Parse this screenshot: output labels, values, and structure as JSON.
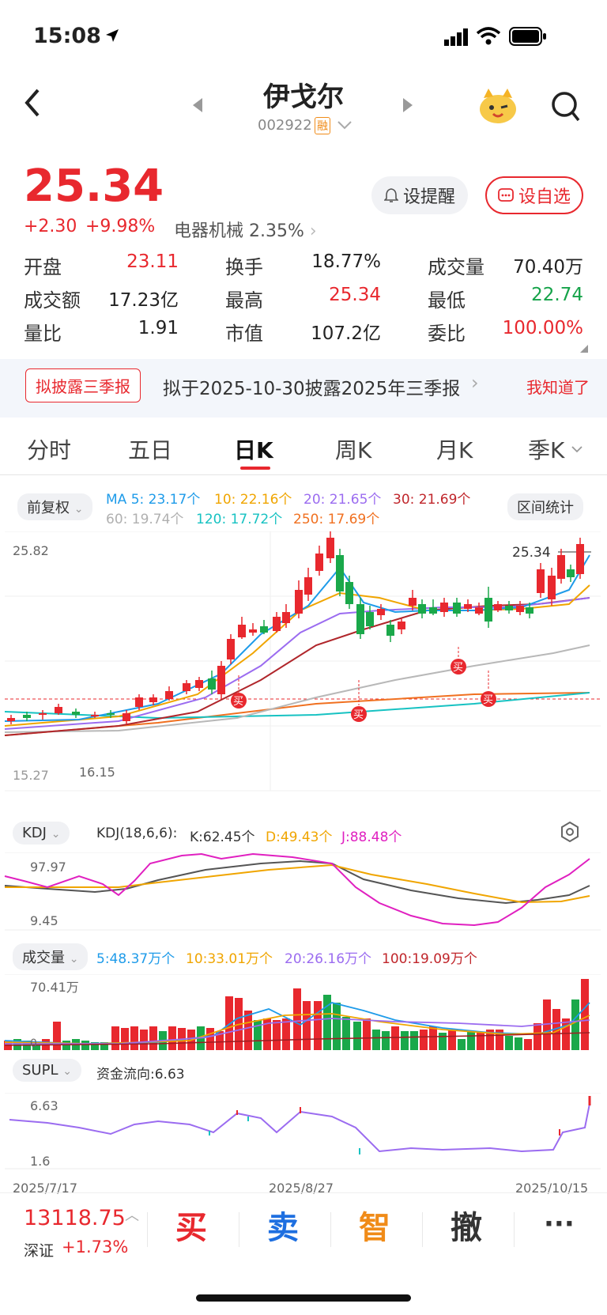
{
  "status_bar": {
    "time": "15:08"
  },
  "header": {
    "title": "伊戈尔",
    "code": "002922",
    "margin_badge": "融"
  },
  "quote": {
    "price": "25.34",
    "change": "+2.30",
    "change_pct": "+9.98%",
    "sector": "电器机械 2.35%",
    "alert_btn": "设提醒",
    "watch_btn": "设自选"
  },
  "stats": [
    {
      "label": "开盘",
      "value": "23.11",
      "color": "#e8282e"
    },
    {
      "label": "换手",
      "value": "18.77%",
      "color": "#222222"
    },
    {
      "label": "成交量",
      "value": "70.40万",
      "color": "#222222"
    },
    {
      "label": "成交额",
      "value": "17.23亿",
      "color": "#222222"
    },
    {
      "label": "最高",
      "value": "25.34",
      "color": "#e8282e"
    },
    {
      "label": "最低",
      "value": "22.74",
      "color": "#16a34a"
    },
    {
      "label": "量比",
      "value": "1.91",
      "color": "#222222"
    },
    {
      "label": "市值",
      "value": "107.2亿",
      "color": "#222222"
    },
    {
      "label": "委比",
      "value": "100.00%",
      "color": "#e8282e"
    }
  ],
  "notice": {
    "badge": "拟披露三季报",
    "text": "拟于2025-10-30披露2025年三季报",
    "dismiss": "我知道了"
  },
  "tabs": [
    "分时",
    "五日",
    "日K",
    "周K",
    "月K",
    "季K"
  ],
  "active_tab": "日K",
  "ma_legend": {
    "adj": "前复权",
    "row1": [
      {
        "text": "MA 5: 23.17个",
        "color": "#1e9be9"
      },
      {
        "text": "10: 22.16个",
        "color": "#f0a500"
      },
      {
        "text": "20: 21.65个",
        "color": "#9b6cf0"
      },
      {
        "text": "30: 21.69个",
        "color": "#c0262b"
      }
    ],
    "row2": [
      {
        "text": "60: 19.74个",
        "color": "#b0b0b0"
      },
      {
        "text": "120: 17.72个",
        "color": "#17c2c2"
      },
      {
        "text": "250: 17.69个",
        "color": "#f07020"
      }
    ],
    "stats_btn": "区间统计"
  },
  "main_chart": {
    "y_high": "25.82",
    "last_price": "25.34",
    "low_label_a": "15.27",
    "low_label_b": "16.15",
    "buy_marker": "买"
  },
  "kdj": {
    "selector": "KDJ",
    "params": "KDJ(18,6,6):",
    "k": "K:62.45个",
    "d": "D:49.43个",
    "j": "J:88.48个",
    "y_high": "97.97",
    "y_low": "9.45"
  },
  "volume": {
    "selector": "成交量",
    "ma5": "5:48.37万个",
    "ma10": "10:33.01万个",
    "ma20": "20:26.16万个",
    "ma100": "100:19.09万个",
    "y_high": "70.41万",
    "y_zero": "0"
  },
  "supl": {
    "selector": "SUPL",
    "flow": "资金流向:6.63",
    "y_high": "6.63",
    "y_low": "1.6"
  },
  "dates": [
    "2025/7/17",
    "2025/8/27",
    "2025/10/15"
  ],
  "bottom_bar": {
    "index_value": "13118.75",
    "index_name": "深证",
    "index_change": "+1.73%",
    "buy": "买",
    "sell": "卖",
    "smart": "智",
    "cancel": "撤",
    "more": "···"
  }
}
